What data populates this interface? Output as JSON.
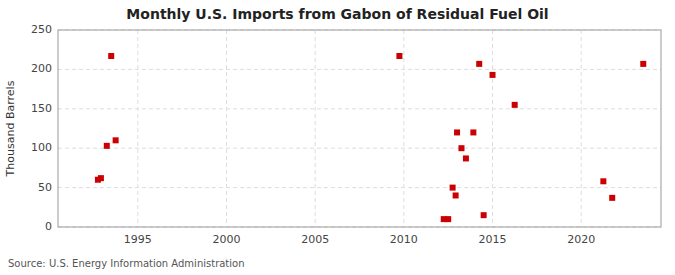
{
  "chart_data": {
    "type": "scatter",
    "title": "Monthly U.S. Imports from Gabon of Residual Fuel Oil",
    "y_label": "Thousand Barrels",
    "annotations": [
      "Source: U.S. Energy Information Administration"
    ],
    "x": [
      1992.75,
      1992.92,
      1993.25,
      1993.5,
      1993.75,
      2009.75,
      2012.25,
      2012.5,
      2012.75,
      2012.92,
      2013.0,
      2013.25,
      2013.5,
      2013.92,
      2014.25,
      2014.5,
      2015.0,
      2016.25,
      2021.25,
      2021.75,
      2023.5
    ],
    "values": [
      60,
      62,
      103,
      217,
      110,
      217,
      10,
      10,
      50,
      40,
      120,
      100,
      87,
      120,
      207,
      15,
      193,
      155,
      58,
      37,
      207
    ],
    "color": "#cc0000",
    "marker": "square",
    "xlim": [
      1990.5,
      2024.5
    ],
    "ylim": [
      0,
      250
    ],
    "xticks": [
      1995,
      2000,
      2005,
      2010,
      2015,
      2020
    ],
    "yticks": [
      0,
      50,
      100,
      150,
      200,
      250
    ],
    "grid": true
  }
}
